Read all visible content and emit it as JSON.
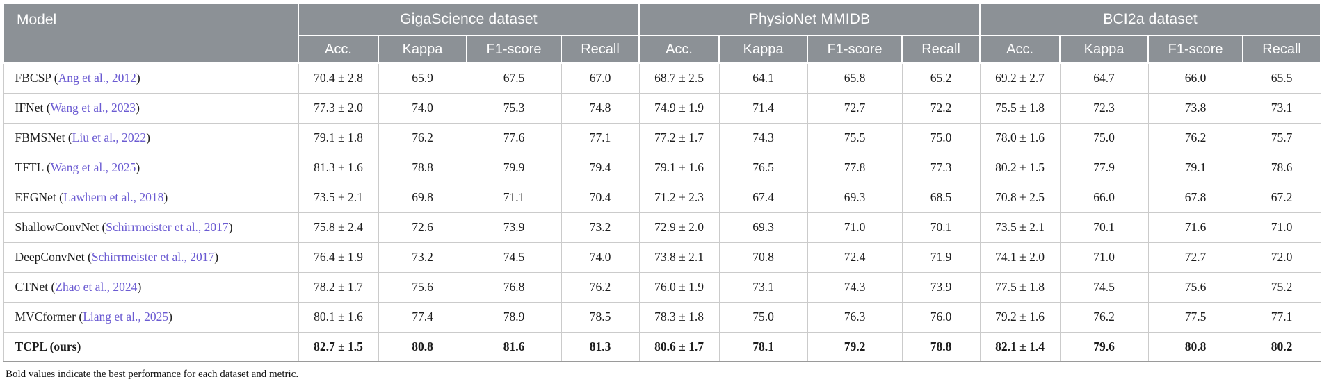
{
  "colors": {
    "header_bg": "#8c9196",
    "header_text": "#ffffff",
    "body_border": "#cbcbcb",
    "outer_border": "#9a9a9a",
    "link": "#6b5bd2"
  },
  "table": {
    "model_header": "Model",
    "groups": [
      {
        "label": "GigaScience dataset",
        "metrics": [
          "Acc.",
          "Kappa",
          "F1-score",
          "Recall"
        ]
      },
      {
        "label": "PhysioNet MMIDB",
        "metrics": [
          "Acc.",
          "Kappa",
          "F1-score",
          "Recall"
        ]
      },
      {
        "label": "BCI2a dataset",
        "metrics": [
          "Acc.",
          "Kappa",
          "F1-score",
          "Recall"
        ]
      }
    ],
    "rows": [
      {
        "model": "FBCSP",
        "cite": "Ang et al., 2012",
        "bold": false,
        "values": [
          "70.4 ± 2.8",
          "65.9",
          "67.5",
          "67.0",
          "68.7 ± 2.5",
          "64.1",
          "65.8",
          "65.2",
          "69.2 ± 2.7",
          "64.7",
          "66.0",
          "65.5"
        ]
      },
      {
        "model": "IFNet",
        "cite": "Wang et al., 2023",
        "bold": false,
        "values": [
          "77.3 ± 2.0",
          "74.0",
          "75.3",
          "74.8",
          "74.9 ± 1.9",
          "71.4",
          "72.7",
          "72.2",
          "75.5 ± 1.8",
          "72.3",
          "73.8",
          "73.1"
        ]
      },
      {
        "model": "FBMSNet",
        "cite": "Liu et al., 2022",
        "bold": false,
        "values": [
          "79.1 ± 1.8",
          "76.2",
          "77.6",
          "77.1",
          "77.2 ± 1.7",
          "74.3",
          "75.5",
          "75.0",
          "78.0 ± 1.6",
          "75.0",
          "76.2",
          "75.7"
        ]
      },
      {
        "model": "TFTL",
        "cite": "Wang et al., 2025",
        "bold": false,
        "values": [
          "81.3 ± 1.6",
          "78.8",
          "79.9",
          "79.4",
          "79.1 ± 1.6",
          "76.5",
          "77.8",
          "77.3",
          "80.2 ± 1.5",
          "77.9",
          "79.1",
          "78.6"
        ]
      },
      {
        "model": "EEGNet",
        "cite": "Lawhern et al., 2018",
        "bold": false,
        "values": [
          "73.5 ± 2.1",
          "69.8",
          "71.1",
          "70.4",
          "71.2 ± 2.3",
          "67.4",
          "69.3",
          "68.5",
          "70.8 ± 2.5",
          "66.0",
          "67.8",
          "67.2"
        ]
      },
      {
        "model": "ShallowConvNet",
        "cite": "Schirrmeister et al., 2017",
        "bold": false,
        "values": [
          "75.8 ± 2.4",
          "72.6",
          "73.9",
          "73.2",
          "72.9 ± 2.0",
          "69.3",
          "71.0",
          "70.1",
          "73.5 ± 2.1",
          "70.1",
          "71.6",
          "71.0"
        ]
      },
      {
        "model": "DeepConvNet",
        "cite": "Schirrmeister et al., 2017",
        "bold": false,
        "values": [
          "76.4 ± 1.9",
          "73.2",
          "74.5",
          "74.0",
          "73.8 ± 2.1",
          "70.8",
          "72.4",
          "71.9",
          "74.1 ± 2.0",
          "71.0",
          "72.7",
          "72.0"
        ]
      },
      {
        "model": "CTNet",
        "cite": "Zhao et al., 2024",
        "bold": false,
        "values": [
          "78.2 ± 1.7",
          "75.6",
          "76.8",
          "76.2",
          "76.0 ± 1.9",
          "73.1",
          "74.3",
          "73.9",
          "77.5 ± 1.8",
          "74.5",
          "75.6",
          "75.2"
        ]
      },
      {
        "model": "MVCformer",
        "cite": "Liang et al., 2025",
        "bold": false,
        "values": [
          "80.1 ± 1.6",
          "77.4",
          "78.9",
          "78.5",
          "78.3 ± 1.8",
          "75.0",
          "76.3",
          "76.0",
          "79.2 ± 1.6",
          "76.2",
          "77.5",
          "77.1"
        ]
      },
      {
        "model": "TCPL (ours)",
        "cite": null,
        "bold": true,
        "values": [
          "82.7 ± 1.5",
          "80.8",
          "81.6",
          "81.3",
          "80.6 ± 1.7",
          "78.1",
          "79.2",
          "78.8",
          "82.1 ± 1.4",
          "79.6",
          "80.8",
          "80.2"
        ]
      }
    ],
    "footnote": "Bold values indicate the best performance for each dataset and metric."
  }
}
